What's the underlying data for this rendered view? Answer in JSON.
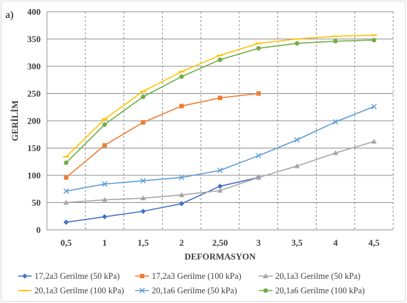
{
  "panel_label": "a)",
  "chart_data": {
    "type": "line",
    "xlabel": "DEFORMASYON",
    "ylabel": "GERİLİM",
    "categories": [
      "0,5",
      "1",
      "1,5",
      "2",
      "2,50",
      "3",
      "3,5",
      "4",
      "4,5"
    ],
    "ylim": [
      0,
      400
    ],
    "yticks": [
      0,
      50,
      100,
      150,
      200,
      250,
      300,
      350,
      400
    ],
    "grid": true,
    "legend_position": "bottom",
    "series": [
      {
        "name": "17,2a3 Gerilme (50 kPa)",
        "color": "#4472c4",
        "marker": "diamond",
        "values": [
          14,
          24,
          34,
          48,
          80,
          96,
          null,
          null,
          null
        ]
      },
      {
        "name": "17,2a3 Gerilme (100 kPa)",
        "color": "#ed7d31",
        "marker": "square",
        "values": [
          96,
          155,
          197,
          227,
          242,
          250,
          null,
          null,
          null
        ]
      },
      {
        "name": "20,1a3 Gerilme (50 kPa)",
        "color": "#a5a5a5",
        "marker": "triangle",
        "values": [
          50,
          55,
          58,
          64,
          72,
          96,
          117,
          141,
          162
        ]
      },
      {
        "name": "20,1a3 Gerilme (100 kPa)",
        "color": "#ffc000",
        "marker": "dash",
        "values": [
          134,
          203,
          254,
          290,
          320,
          342,
          350,
          355,
          357
        ]
      },
      {
        "name": "20,1a6 Gerilme (50 kPa)",
        "color": "#5b9bd5",
        "marker": "x",
        "values": [
          71,
          84,
          90,
          96,
          109,
          136,
          165,
          198,
          226
        ]
      },
      {
        "name": "20,1a6 Gerilme (100 kPa)",
        "color": "#70ad47",
        "marker": "circle",
        "values": [
          123,
          193,
          244,
          281,
          312,
          333,
          342,
          346,
          348
        ]
      }
    ]
  }
}
